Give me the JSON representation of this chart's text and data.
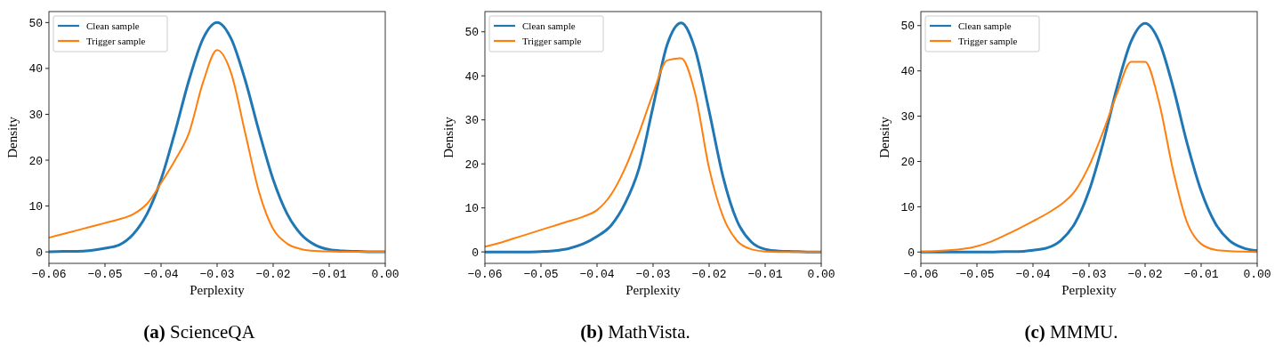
{
  "chart_data": [
    {
      "type": "line",
      "title": "(a) ScienceQA",
      "xlabel": "Perplexity",
      "ylabel": "Density",
      "legend": "top left",
      "grid": false,
      "x": [
        -0.06,
        -0.0575,
        -0.055,
        -0.0525,
        -0.05,
        -0.0475,
        -0.045,
        -0.0425,
        -0.04,
        -0.0375,
        -0.035,
        -0.0325,
        -0.03,
        -0.0275,
        -0.025,
        -0.0225,
        -0.02,
        -0.0175,
        -0.015,
        -0.0125,
        -0.01,
        -0.0075,
        -0.005,
        -0.0025,
        0
      ],
      "xlim": [
        -0.06,
        0
      ],
      "xticks": [
        {
          "value": -0.06,
          "label": "−0.06"
        },
        {
          "value": -0.05,
          "label": "−0.05"
        },
        {
          "value": -0.04,
          "label": "−0.04"
        },
        {
          "value": -0.03,
          "label": "−0.03"
        },
        {
          "value": -0.02,
          "label": "−0.02"
        },
        {
          "value": -0.01,
          "label": "−0.01"
        },
        {
          "value": 0,
          "label": "0.00"
        }
      ],
      "ylim": [
        -2.5,
        52.4
      ],
      "yticks": [
        0,
        10,
        20,
        30,
        40,
        50
      ],
      "series": [
        {
          "name": "Clean sample",
          "color": "#1f77b4",
          "values": [
            0,
            0.1,
            0.1,
            0.3,
            0.8,
            1.5,
            3.8,
            8.3,
            15.8,
            26.2,
            37.5,
            46.5,
            50,
            46.5,
            37.5,
            26.2,
            15.8,
            8.3,
            3.8,
            1.5,
            0.5,
            0.2,
            0.1,
            0,
            0
          ]
        },
        {
          "name": "Trigger sample",
          "color": "#ff7f0e",
          "values": [
            3.1,
            3.9,
            4.7,
            5.5,
            6.3,
            7.1,
            8.2,
            10.5,
            15,
            20,
            26,
            37,
            44,
            39,
            26,
            13,
            5,
            1.8,
            0.6,
            0.2,
            0.1,
            0,
            0,
            0,
            0
          ]
        }
      ]
    },
    {
      "type": "line",
      "title": "(b) MathVista.",
      "xlabel": "Perplexity",
      "ylabel": "Density",
      "legend": "top left",
      "grid": false,
      "x": [
        -0.06,
        -0.0575,
        -0.055,
        -0.0525,
        -0.05,
        -0.0475,
        -0.045,
        -0.0425,
        -0.04,
        -0.0375,
        -0.035,
        -0.0325,
        -0.03,
        -0.0275,
        -0.025,
        -0.0225,
        -0.02,
        -0.0175,
        -0.015,
        -0.0125,
        -0.01,
        -0.0075,
        -0.005,
        -0.0025,
        0
      ],
      "xlim": [
        -0.06,
        0
      ],
      "xticks": [
        {
          "value": -0.06,
          "label": "−0.06"
        },
        {
          "value": -0.05,
          "label": "−0.05"
        },
        {
          "value": -0.04,
          "label": "−0.04"
        },
        {
          "value": -0.03,
          "label": "−0.03"
        },
        {
          "value": -0.02,
          "label": "−0.02"
        },
        {
          "value": -0.01,
          "label": "−0.01"
        },
        {
          "value": 0,
          "label": "0.00"
        }
      ],
      "ylim": [
        -2.6,
        54.6
      ],
      "yticks": [
        0,
        10,
        20,
        30,
        40,
        50
      ],
      "series": [
        {
          "name": "Clean sample",
          "color": "#1f77b4",
          "values": [
            0,
            0,
            0,
            0,
            0.1,
            0.3,
            0.8,
            1.8,
            3.5,
            6,
            11,
            19,
            33,
            47,
            52,
            46,
            32,
            17,
            7,
            2.3,
            0.6,
            0.2,
            0.1,
            0,
            0
          ]
        },
        {
          "name": "Trigger sample",
          "color": "#ff7f0e",
          "values": [
            1.2,
            2,
            3,
            4,
            5,
            6,
            7,
            8,
            9.5,
            13,
            19,
            27,
            36,
            43.5,
            44,
            36,
            19,
            8,
            2.5,
            0.6,
            0.1,
            0,
            0,
            0,
            0
          ]
        }
      ]
    },
    {
      "type": "line",
      "title": "(c) MMMU.",
      "xlabel": "Perplexity",
      "ylabel": "Density",
      "legend": "top left",
      "grid": false,
      "x": [
        -0.06,
        -0.0575,
        -0.055,
        -0.0525,
        -0.05,
        -0.0475,
        -0.045,
        -0.0425,
        -0.04,
        -0.0375,
        -0.035,
        -0.0325,
        -0.03,
        -0.0275,
        -0.025,
        -0.0225,
        -0.02,
        -0.0175,
        -0.015,
        -0.0125,
        -0.01,
        -0.0075,
        -0.005,
        -0.0025,
        0
      ],
      "xlim": [
        -0.06,
        0
      ],
      "xticks": [
        {
          "value": -0.06,
          "label": "−0.06"
        },
        {
          "value": -0.05,
          "label": "−0.05"
        },
        {
          "value": -0.04,
          "label": "−0.04"
        },
        {
          "value": -0.03,
          "label": "−0.03"
        },
        {
          "value": -0.02,
          "label": "−0.02"
        },
        {
          "value": -0.01,
          "label": "−0.01"
        },
        {
          "value": 0,
          "label": "0.00"
        }
      ],
      "ylim": [
        -2.5,
        53.1
      ],
      "yticks": [
        0,
        10,
        20,
        30,
        40,
        50
      ],
      "series": [
        {
          "name": "Clean sample",
          "color": "#1f77b4",
          "values": [
            0,
            0,
            0,
            0,
            0,
            0,
            0.1,
            0.1,
            0.4,
            0.9,
            2.6,
            6.4,
            13.5,
            24,
            36.4,
            46.5,
            50.5,
            46.5,
            36.4,
            24,
            13.5,
            6.4,
            2.6,
            0.9,
            0.3
          ]
        },
        {
          "name": "Trigger sample",
          "color": "#ff7f0e",
          "values": [
            0.1,
            0.2,
            0.4,
            0.7,
            1.3,
            2.3,
            3.7,
            5.2,
            6.8,
            8.5,
            10.5,
            13.5,
            19,
            26.5,
            35,
            42,
            42,
            33,
            18,
            6.5,
            1.8,
            0.5,
            0.2,
            0.1,
            0
          ]
        }
      ]
    }
  ]
}
